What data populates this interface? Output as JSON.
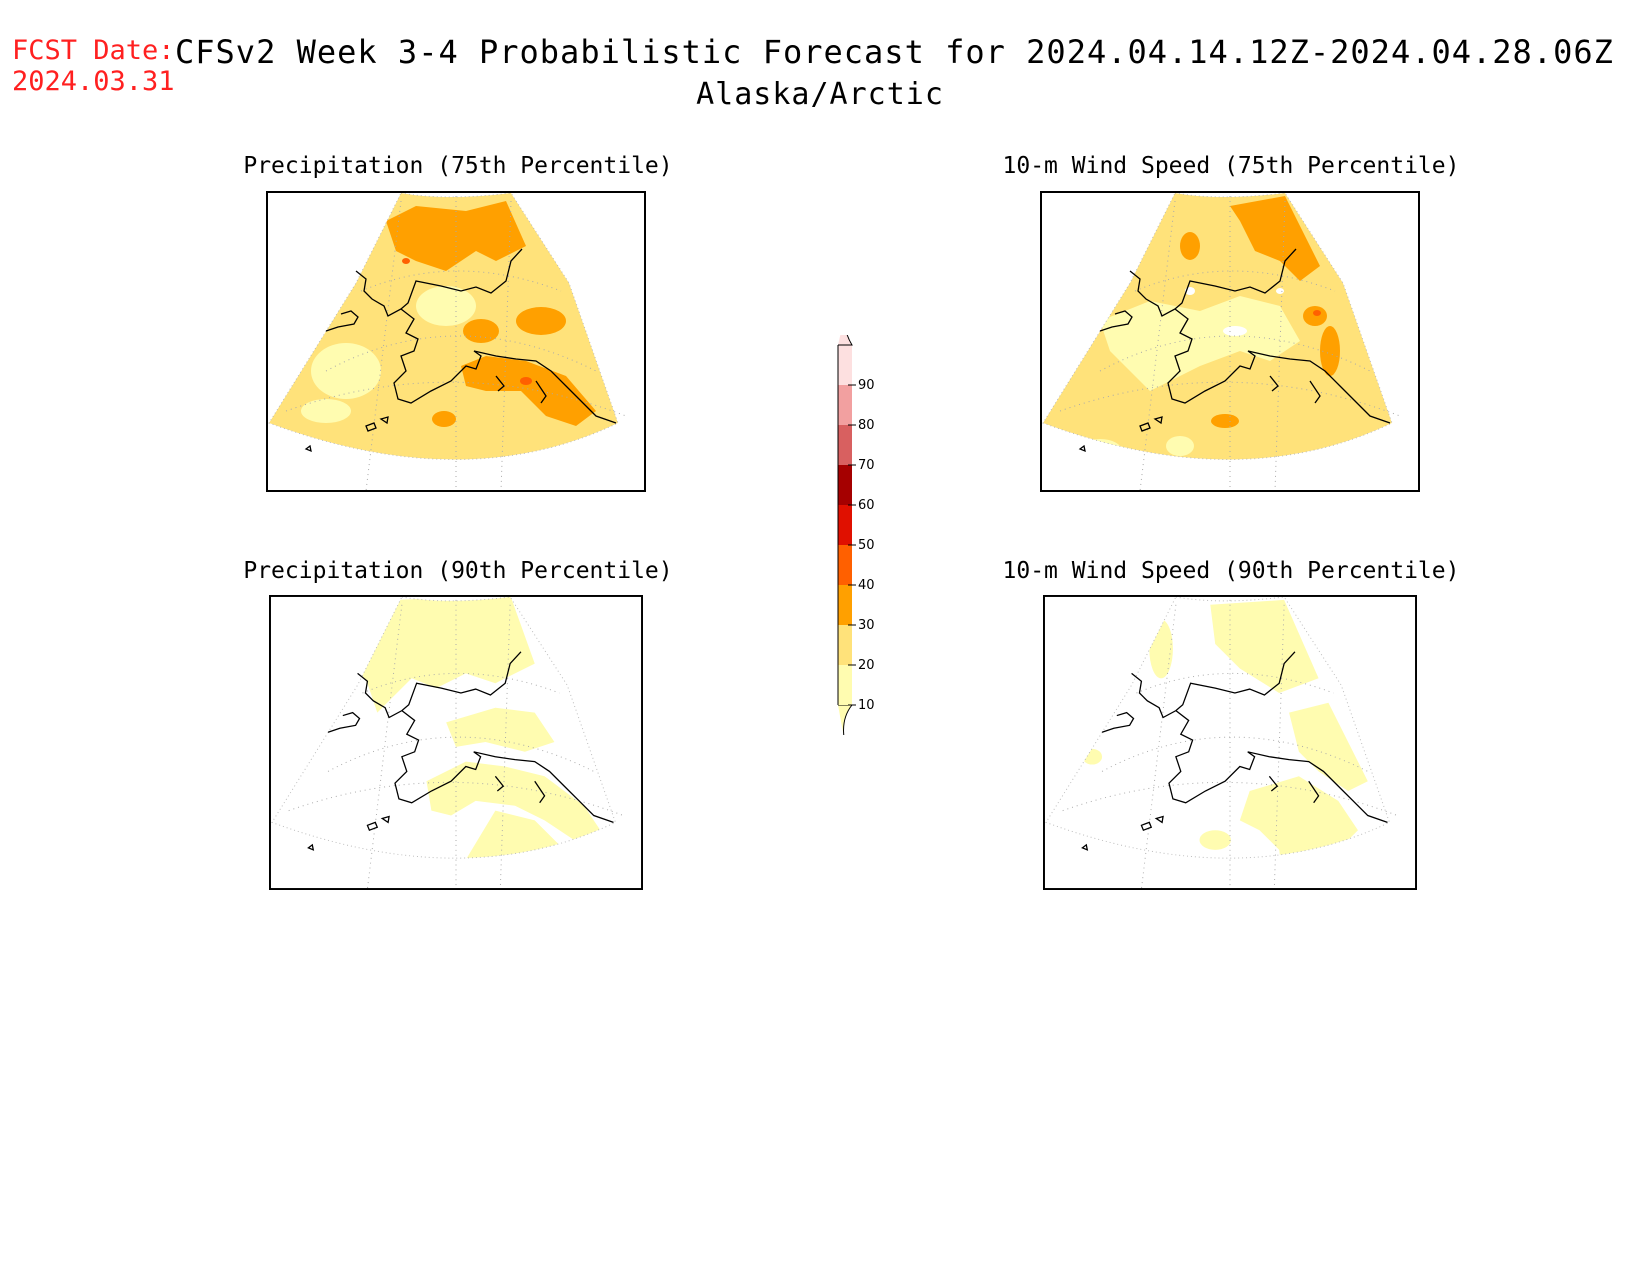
{
  "header": {
    "fcst_label": "FCST Date:",
    "fcst_date": "2024.03.31",
    "title": "CFSv2 Week 3-4 Probabilistic Forecast for 2024.04.14.12Z-2024.04.28.06Z",
    "region": "Alaska/Arctic"
  },
  "panels": [
    {
      "title": "Precipitation (75th Percentile)",
      "level": "high"
    },
    {
      "title": "10-m Wind Speed (75th Percentile)",
      "level": "mid"
    },
    {
      "title": "Precipitation (90th Percentile)",
      "level": "low"
    },
    {
      "title": "10-m Wind Speed (90th Percentile)",
      "level": "verylow"
    }
  ],
  "colorbar": {
    "ticks": [
      "10",
      "20",
      "30",
      "40",
      "50",
      "60",
      "70",
      "80",
      "90"
    ],
    "colors": [
      "#fffcb0",
      "#ffe27a",
      "#ffa000",
      "#ff6000",
      "#e01000",
      "#a50000",
      "#d86060",
      "#f2a0a0",
      "#fde0e0"
    ]
  },
  "palette": {
    "c10": "#fffcb0",
    "c20": "#ffe27a",
    "c30": "#ffa000",
    "c40": "#ff6000",
    "c50": "#e01000"
  }
}
